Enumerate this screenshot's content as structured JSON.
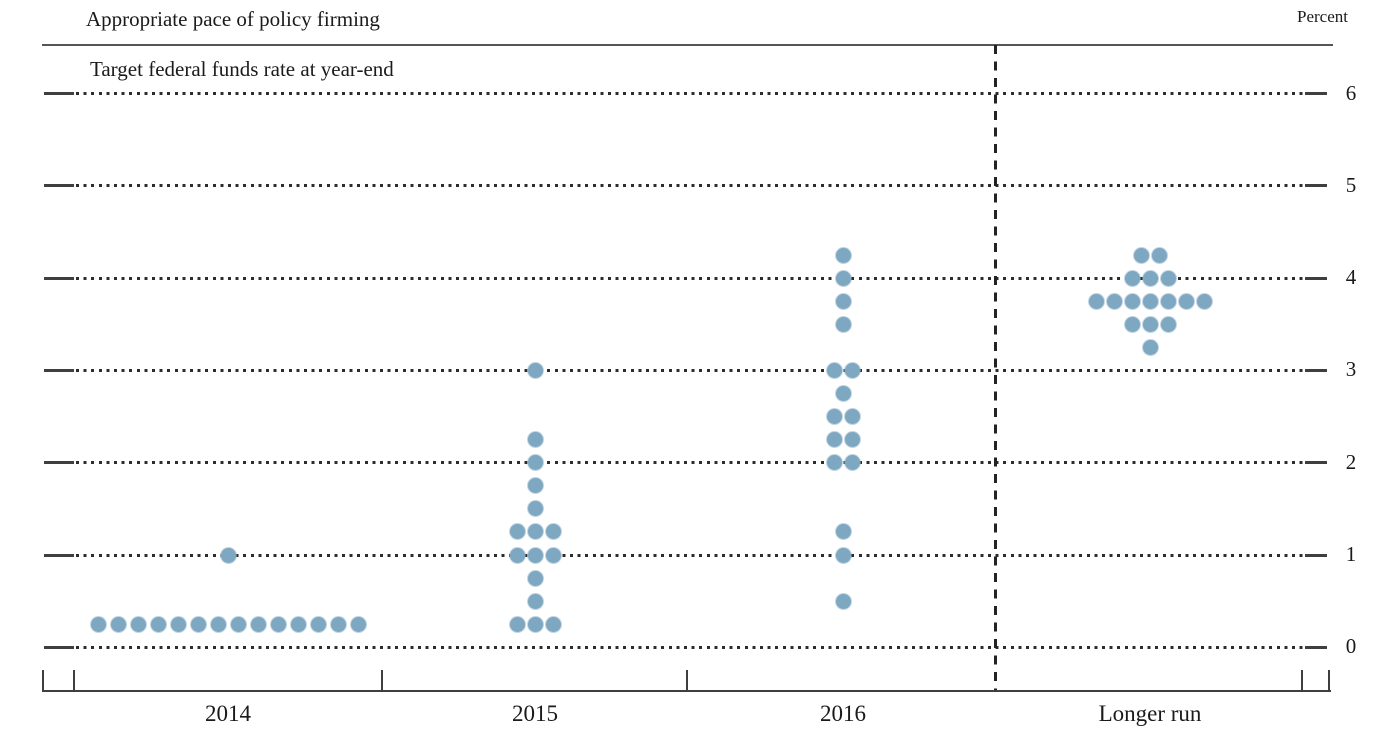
{
  "title": "Appropriate pace of policy firming",
  "subtitle": "Target federal funds rate at year-end",
  "unit_label": "Percent",
  "colors": {
    "dot": "#7ea7c2",
    "grid_dots": "#2c2c2c",
    "axis": "#3f3f3f",
    "text": "#1a1a1a",
    "background": "#ffffff"
  },
  "chart_data": {
    "type": "scatter",
    "title": "Appropriate pace of policy firming",
    "subtitle": "Target federal funds rate at year-end",
    "ylabel": "Percent",
    "ylim": [
      0,
      6.5
    ],
    "yticks": [
      0,
      1,
      2,
      3,
      4,
      5,
      6
    ],
    "grid": "dotted horizontal lines at each integer percent",
    "legend": "none",
    "separator": "dashed vertical line between 2016 and Longer run",
    "categories": [
      "2014",
      "2015",
      "2016",
      "Longer run"
    ],
    "columns": [
      {
        "label": "2014",
        "dots": [
          {
            "value": 1.0,
            "count": 1
          },
          {
            "value": 0.25,
            "count": 14,
            "spacing": 20
          }
        ]
      },
      {
        "label": "2015",
        "dots": [
          {
            "value": 3.0,
            "count": 1
          },
          {
            "value": 2.25,
            "count": 1
          },
          {
            "value": 2.0,
            "count": 1
          },
          {
            "value": 1.75,
            "count": 1
          },
          {
            "value": 1.5,
            "count": 1
          },
          {
            "value": 1.25,
            "count": 3
          },
          {
            "value": 1.0,
            "count": 3
          },
          {
            "value": 0.75,
            "count": 1
          },
          {
            "value": 0.5,
            "count": 1
          },
          {
            "value": 0.25,
            "count": 3
          }
        ]
      },
      {
        "label": "2016",
        "dots": [
          {
            "value": 4.25,
            "count": 1
          },
          {
            "value": 4.0,
            "count": 1
          },
          {
            "value": 3.75,
            "count": 1
          },
          {
            "value": 3.5,
            "count": 1
          },
          {
            "value": 3.0,
            "count": 2
          },
          {
            "value": 2.75,
            "count": 1
          },
          {
            "value": 2.5,
            "count": 2
          },
          {
            "value": 2.25,
            "count": 2
          },
          {
            "value": 2.0,
            "count": 2
          },
          {
            "value": 1.25,
            "count": 1
          },
          {
            "value": 1.0,
            "count": 1
          },
          {
            "value": 0.5,
            "count": 1
          }
        ]
      },
      {
        "label": "Longer run",
        "dots": [
          {
            "value": 4.25,
            "count": 2
          },
          {
            "value": 4.0,
            "count": 3
          },
          {
            "value": 3.75,
            "count": 7
          },
          {
            "value": 3.5,
            "count": 3
          },
          {
            "value": 3.25,
            "count": 1
          }
        ]
      }
    ]
  }
}
